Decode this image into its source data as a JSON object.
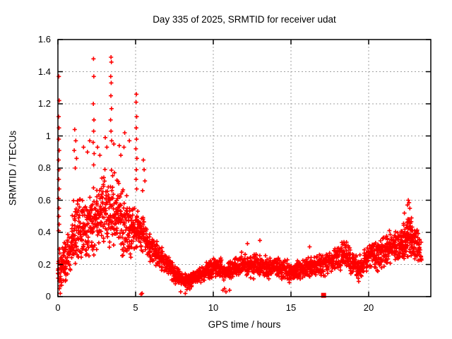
{
  "title": "Day 335 of 2025, SRMTID for receiver udat",
  "x_axis": {
    "label": "GPS time / hours",
    "min": 0,
    "max": 24,
    "tick_values": [
      0,
      5,
      10,
      15,
      20
    ],
    "tick_labels": [
      "0",
      "5",
      "10",
      "15",
      "20"
    ]
  },
  "y_axis": {
    "label": "SRMTID / TECUs",
    "min": 0,
    "max": 1.6,
    "tick_values": [
      0,
      0.2,
      0.4,
      0.6,
      0.8,
      1.0,
      1.2,
      1.4,
      1.6
    ],
    "tick_labels": [
      "0",
      "0.2",
      "0.4",
      "0.6",
      "0.8",
      "1",
      "1.2",
      "1.4",
      "1.6"
    ]
  },
  "colors": {
    "points": "#ff0000",
    "grid": "#a0a0a0",
    "border": "#000000",
    "background": "#ffffff",
    "text": "#000000"
  },
  "chart_data": {
    "type": "scatter",
    "title": "Day 335 of 2025, SRMTID for receiver udat",
    "xlabel": "GPS time / hours",
    "ylabel": "SRMTID / TECUs",
    "xlim": [
      0,
      24
    ],
    "ylim": [
      0,
      1.6
    ],
    "xticks": [
      0,
      5,
      10,
      15,
      20
    ],
    "yticks": [
      0,
      0.2,
      0.4,
      0.6,
      0.8,
      1.0,
      1.2,
      1.4,
      1.6
    ],
    "grid": true,
    "grid_style": "dashed",
    "legend": "none",
    "marker": "plus",
    "marker_color": "#ff0000",
    "data_extent_hours": [
      0,
      23.4
    ],
    "pattern_summary": "Dense noisy scatter: high variable values (0.1-1.5 TECUs) from 0-6h with vertical spike columns near 0.06h, 2.3h, 3.4h and 5.05h reaching 1.2-1.5; quiet band ~0.05-0.3 from 6-21h with minimum ~0.05-0.15 near 8-8.5h; rising to ~0.2-0.6 peaking near 22.6h; one isolated filled-square point at ~17.1h on the zero line.",
    "seed": 335,
    "band_envelope": {
      "slice_hours": 0.1,
      "anchors_format": [
        "hour",
        "y_low",
        "y_high",
        "points_per_slice"
      ],
      "anchors": [
        [
          0.0,
          0.03,
          0.35,
          12
        ],
        [
          0.3,
          0.05,
          0.32,
          12
        ],
        [
          0.7,
          0.1,
          0.45,
          11
        ],
        [
          1.0,
          0.15,
          0.6,
          12
        ],
        [
          1.3,
          0.2,
          0.72,
          12
        ],
        [
          1.7,
          0.2,
          0.65,
          11
        ],
        [
          2.0,
          0.22,
          0.68,
          11
        ],
        [
          2.4,
          0.25,
          0.72,
          11
        ],
        [
          2.8,
          0.28,
          0.8,
          11
        ],
        [
          3.1,
          0.28,
          0.85,
          11
        ],
        [
          3.4,
          0.25,
          0.9,
          11
        ],
        [
          3.8,
          0.25,
          0.78,
          11
        ],
        [
          4.2,
          0.22,
          0.72,
          11
        ],
        [
          4.6,
          0.2,
          0.62,
          11
        ],
        [
          5.0,
          0.28,
          0.6,
          12
        ],
        [
          5.4,
          0.28,
          0.55,
          11
        ],
        [
          5.8,
          0.22,
          0.45,
          10
        ],
        [
          6.2,
          0.2,
          0.38,
          10
        ],
        [
          6.6,
          0.16,
          0.33,
          10
        ],
        [
          7.0,
          0.13,
          0.28,
          10
        ],
        [
          7.5,
          0.08,
          0.22,
          10
        ],
        [
          8.0,
          0.05,
          0.17,
          10
        ],
        [
          8.4,
          0.04,
          0.15,
          10
        ],
        [
          8.8,
          0.06,
          0.17,
          10
        ],
        [
          9.2,
          0.08,
          0.2,
          10
        ],
        [
          9.6,
          0.1,
          0.23,
          10
        ],
        [
          10.0,
          0.1,
          0.26,
          10
        ],
        [
          10.4,
          0.11,
          0.26,
          10
        ],
        [
          10.8,
          0.09,
          0.22,
          10
        ],
        [
          11.2,
          0.11,
          0.25,
          10
        ],
        [
          11.6,
          0.12,
          0.27,
          10
        ],
        [
          12.0,
          0.12,
          0.3,
          10
        ],
        [
          12.4,
          0.1,
          0.27,
          10
        ],
        [
          12.8,
          0.12,
          0.3,
          10
        ],
        [
          13.2,
          0.12,
          0.28,
          10
        ],
        [
          13.6,
          0.1,
          0.26,
          10
        ],
        [
          14.0,
          0.12,
          0.27,
          10
        ],
        [
          14.5,
          0.1,
          0.25,
          10
        ],
        [
          15.0,
          0.08,
          0.23,
          10
        ],
        [
          15.5,
          0.1,
          0.24,
          10
        ],
        [
          16.0,
          0.1,
          0.26,
          10
        ],
        [
          16.5,
          0.12,
          0.27,
          10
        ],
        [
          17.0,
          0.12,
          0.28,
          10
        ],
        [
          17.5,
          0.14,
          0.3,
          10
        ],
        [
          18.0,
          0.15,
          0.33,
          10
        ],
        [
          18.5,
          0.16,
          0.37,
          10
        ],
        [
          19.0,
          0.12,
          0.3,
          10
        ],
        [
          19.4,
          0.08,
          0.26,
          10
        ],
        [
          19.8,
          0.14,
          0.31,
          10
        ],
        [
          20.2,
          0.16,
          0.35,
          10
        ],
        [
          20.6,
          0.15,
          0.38,
          10
        ],
        [
          21.0,
          0.18,
          0.4,
          10
        ],
        [
          21.4,
          0.2,
          0.43,
          11
        ],
        [
          21.8,
          0.18,
          0.42,
          12
        ],
        [
          22.2,
          0.22,
          0.48,
          14
        ],
        [
          22.6,
          0.24,
          0.55,
          14
        ],
        [
          23.0,
          0.2,
          0.46,
          12
        ],
        [
          23.35,
          0.2,
          0.4,
          8
        ]
      ]
    },
    "outlier_points": [
      [
        0.06,
        1.37
      ],
      [
        0.08,
        1.22
      ],
      [
        0.05,
        1.12
      ],
      [
        0.07,
        1.05
      ],
      [
        0.06,
        0.98
      ],
      [
        0.08,
        0.91
      ],
      [
        0.05,
        0.85
      ],
      [
        0.07,
        0.79
      ],
      [
        0.06,
        0.73
      ],
      [
        0.08,
        0.67
      ],
      [
        0.05,
        0.61
      ],
      [
        0.07,
        0.55
      ],
      [
        0.06,
        0.5
      ],
      [
        0.08,
        0.45
      ],
      [
        0.05,
        0.41
      ],
      [
        0.15,
        0.02
      ],
      [
        0.1,
        0.05
      ],
      [
        1.08,
        1.04
      ],
      [
        1.15,
        0.97
      ],
      [
        1.05,
        0.91
      ],
      [
        1.2,
        0.86
      ],
      [
        1.12,
        0.8
      ],
      [
        1.65,
        0.93
      ],
      [
        1.9,
        0.9
      ],
      [
        2.05,
        0.97
      ],
      [
        2.29,
        1.48
      ],
      [
        2.31,
        1.37
      ],
      [
        2.28,
        1.2
      ],
      [
        2.32,
        1.1
      ],
      [
        2.3,
        1.03
      ],
      [
        2.27,
        0.96
      ],
      [
        2.33,
        0.89
      ],
      [
        2.3,
        0.82
      ],
      [
        2.55,
        0.93
      ],
      [
        2.7,
        0.88
      ],
      [
        3.42,
        1.49
      ],
      [
        3.44,
        1.46
      ],
      [
        3.4,
        1.37
      ],
      [
        3.43,
        1.33
      ],
      [
        3.41,
        1.25
      ],
      [
        3.45,
        1.17
      ],
      [
        3.39,
        1.1
      ],
      [
        3.42,
        1.03
      ],
      [
        3.46,
        0.97
      ],
      [
        3.05,
        0.99
      ],
      [
        3.15,
        0.93
      ],
      [
        3.6,
        0.95
      ],
      [
        3.95,
        0.94
      ],
      [
        4.3,
        1.02
      ],
      [
        4.25,
        0.93
      ],
      [
        4.6,
        0.97
      ],
      [
        4.05,
        0.88
      ],
      [
        5.05,
        1.26
      ],
      [
        5.03,
        1.21
      ],
      [
        5.07,
        1.12
      ],
      [
        5.04,
        1.05
      ],
      [
        5.06,
        0.98
      ],
      [
        5.02,
        0.92
      ],
      [
        5.08,
        0.86
      ],
      [
        5.05,
        0.79
      ],
      [
        5.03,
        0.73
      ],
      [
        5.07,
        0.67
      ],
      [
        5.5,
        0.85
      ],
      [
        5.55,
        0.79
      ],
      [
        5.6,
        0.72
      ],
      [
        5.45,
        0.66
      ],
      [
        5.35,
        0.015
      ],
      [
        5.42,
        0.02
      ],
      [
        7.9,
        0.03
      ],
      [
        8.2,
        0.02
      ],
      [
        10.62,
        0.04
      ],
      [
        10.72,
        0.05
      ],
      [
        10.82,
        0.03
      ],
      [
        11.05,
        0.04
      ],
      [
        12.2,
        0.33
      ],
      [
        13.0,
        0.35
      ],
      [
        16.2,
        0.31
      ],
      [
        22.3,
        0.52
      ],
      [
        22.5,
        0.57
      ],
      [
        22.55,
        0.6
      ],
      [
        22.6,
        0.585
      ],
      [
        22.65,
        0.55
      ]
    ],
    "square_point": [
      17.1,
      0.008
    ]
  }
}
